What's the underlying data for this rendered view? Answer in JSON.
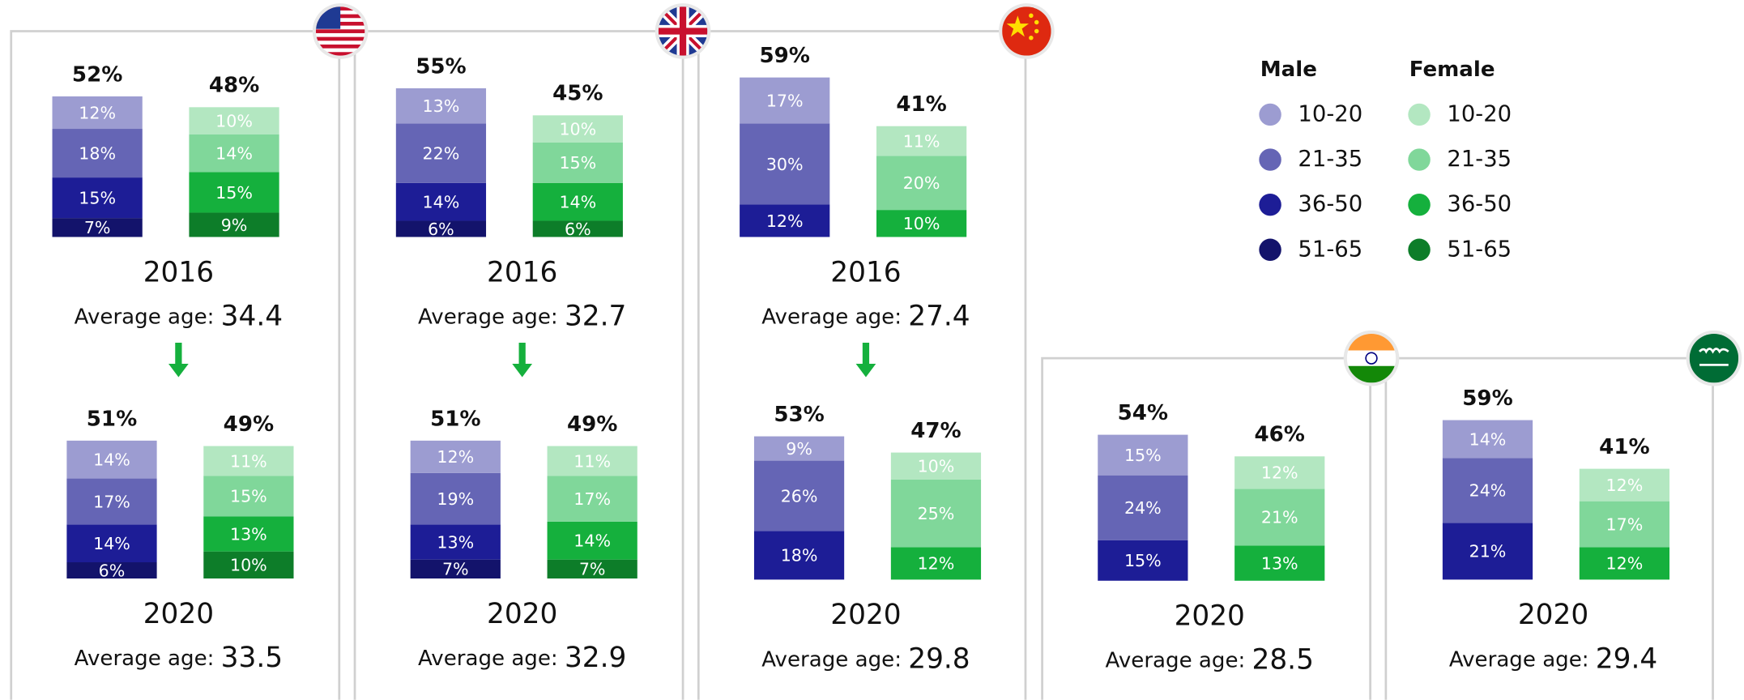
{
  "legend": {
    "groups": [
      {
        "title": "Male",
        "items": [
          "10-20",
          "21-35",
          "36-50",
          "51-65"
        ],
        "colors": [
          "#9c9cd1",
          "#6565b5",
          "#1d1d96",
          "#13136b"
        ]
      },
      {
        "title": "Female",
        "items": [
          "10-20",
          "21-35",
          "36-50",
          "51-65"
        ],
        "colors": [
          "#b3e7c1",
          "#80d79a",
          "#15b03d",
          "#0d7d29"
        ]
      }
    ]
  },
  "chart_data": [
    {
      "type": "stacked_bar",
      "title": "2016",
      "avg_label": "Average age:",
      "avg": 34.4,
      "bars": [
        {
          "total": 52,
          "total_label": "52%",
          "values": [
            12,
            18,
            15,
            7
          ],
          "value_labels": [
            "12%",
            "18%",
            "15%",
            "7%"
          ]
        },
        {
          "total": 48,
          "total_label": "48%",
          "values": [
            10,
            14,
            15,
            9
          ],
          "value_labels": [
            "10%",
            "14%",
            "15%",
            "9%"
          ]
        }
      ]
    },
    {
      "type": "stacked_bar",
      "title": "2020",
      "avg_label": "Average age:",
      "avg": 33.5,
      "bars": [
        {
          "total": 51,
          "total_label": "51%",
          "values": [
            14,
            17,
            14,
            6
          ],
          "value_labels": [
            "14%",
            "17%",
            "14%",
            "6%"
          ]
        },
        {
          "total": 49,
          "total_label": "49%",
          "values": [
            11,
            15,
            13,
            10
          ],
          "value_labels": [
            "11%",
            "15%",
            "13%",
            "10%"
          ]
        }
      ]
    },
    {
      "type": "stacked_bar",
      "title": "2016",
      "avg_label": "Average age:",
      "avg": 32.7,
      "bars": [
        {
          "total": 55,
          "total_label": "55%",
          "values": [
            13,
            22,
            14,
            6
          ],
          "value_labels": [
            "13%",
            "22%",
            "14%",
            "6%"
          ]
        },
        {
          "total": 45,
          "total_label": "45%",
          "values": [
            10,
            15,
            14,
            6
          ],
          "value_labels": [
            "10%",
            "15%",
            "14%",
            "6%"
          ]
        }
      ]
    },
    {
      "type": "stacked_bar",
      "title": "2020",
      "avg_label": "Average age:",
      "avg": 32.9,
      "bars": [
        {
          "total": 51,
          "total_label": "51%",
          "values": [
            12,
            19,
            13,
            7
          ],
          "value_labels": [
            "12%",
            "19%",
            "13%",
            "7%"
          ]
        },
        {
          "total": 49,
          "total_label": "49%",
          "values": [
            11,
            17,
            14,
            7
          ],
          "value_labels": [
            "11%",
            "17%",
            "14%",
            "7%"
          ]
        }
      ]
    },
    {
      "type": "stacked_bar",
      "title": "2016",
      "avg_label": "Average age:",
      "avg": 27.4,
      "bars": [
        {
          "total": 59,
          "total_label": "59%",
          "values": [
            17,
            30,
            12
          ],
          "value_labels": [
            "17%",
            "30%",
            "12%"
          ]
        },
        {
          "total": 41,
          "total_label": "41%",
          "values": [
            11,
            20,
            10
          ],
          "value_labels": [
            "11%",
            "20%",
            "10%"
          ]
        }
      ]
    },
    {
      "type": "stacked_bar",
      "title": "2020",
      "avg_label": "Average age:",
      "avg": 29.8,
      "bars": [
        {
          "total": 53,
          "total_label": "53%",
          "values": [
            9,
            26,
            18
          ],
          "value_labels": [
            "9%",
            "26%",
            "18%"
          ]
        },
        {
          "total": 47,
          "total_label": "47%",
          "values": [
            10,
            25,
            12
          ],
          "value_labels": [
            "10%",
            "25%",
            "12%"
          ]
        }
      ]
    },
    {
      "type": "stacked_bar",
      "title": "2020",
      "avg_label": "Average age:",
      "avg": 28.5,
      "bars": [
        {
          "total": 54,
          "total_label": "54%",
          "values": [
            15,
            24,
            15
          ],
          "value_labels": [
            "15%",
            "24%",
            "15%"
          ]
        },
        {
          "total": 46,
          "total_label": "46%",
          "values": [
            12,
            21,
            13
          ],
          "value_labels": [
            "12%",
            "21%",
            "13%"
          ]
        }
      ]
    },
    {
      "type": "stacked_bar",
      "title": "2020",
      "avg_label": "Average age:",
      "avg": 29.4,
      "bars": [
        {
          "total": 59,
          "total_label": "59%",
          "values": [
            14,
            24,
            21
          ],
          "value_labels": [
            "14%",
            "24%",
            "21%"
          ]
        },
        {
          "total": 41,
          "total_label": "41%",
          "values": [
            12,
            17,
            12
          ],
          "value_labels": [
            "12%",
            "17%",
            "12%"
          ]
        }
      ]
    }
  ]
}
